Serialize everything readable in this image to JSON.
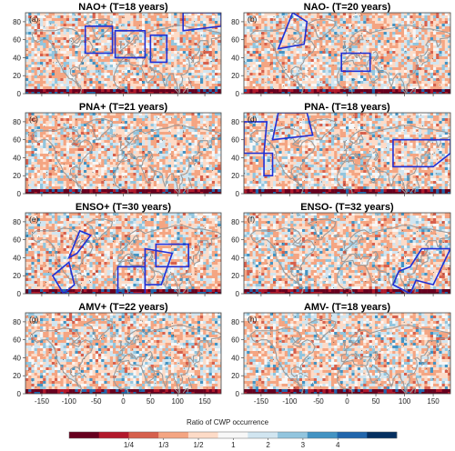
{
  "chart_data": {
    "type": "heatmap",
    "panels": [
      {
        "label": "(a)",
        "title": "NAO+ (T=18 years)"
      },
      {
        "label": "(b)",
        "title": "NAO- (T=20 years)"
      },
      {
        "label": "(c)",
        "title": "PNA+ (T=21 years)"
      },
      {
        "label": "(d)",
        "title": "PNA- (T=18 years)"
      },
      {
        "label": "(e)",
        "title": "ENSO+ (T=30 years)"
      },
      {
        "label": "(f)",
        "title": "ENSO- (T=32 years)"
      },
      {
        "label": "(g)",
        "title": "AMV+ (T=22 years)"
      },
      {
        "label": "(h)",
        "title": "AMV- (T=18 years)"
      }
    ],
    "x_ticks": [
      "-150",
      "-100",
      "-50",
      "0",
      "50",
      "100",
      "150"
    ],
    "x_tick_values": [
      -150,
      -100,
      -50,
      0,
      50,
      100,
      150
    ],
    "y_ticks": [
      "0",
      "20",
      "40",
      "60",
      "80"
    ],
    "y_tick_values": [
      0,
      20,
      40,
      60,
      80
    ],
    "xlim": [
      -180,
      180
    ],
    "ylim": [
      0,
      90
    ],
    "colorbar": {
      "title": "Ratio of CWP occurrence",
      "tick_labels": [
        "1/4",
        "1/3",
        "1/2",
        "1",
        "2",
        "3",
        "4"
      ],
      "colors": [
        "#67001f",
        "#b2182b",
        "#d6604d",
        "#f4a582",
        "#fddbc7",
        "#f7f7f7",
        "#d1e5f0",
        "#92c5de",
        "#4393c3",
        "#2166ac",
        "#053061"
      ]
    },
    "region_boxes": {
      "NAO+": [
        [
          [
            -70,
            45
          ],
          [
            -20,
            45
          ],
          [
            -20,
            75
          ],
          [
            -70,
            75
          ]
        ],
        [
          [
            -15,
            40
          ],
          [
            40,
            40
          ],
          [
            40,
            70
          ],
          [
            -15,
            70
          ]
        ],
        [
          [
            50,
            35
          ],
          [
            80,
            35
          ],
          [
            80,
            65
          ],
          [
            50,
            65
          ]
        ],
        [
          [
            110,
            70
          ],
          [
            180,
            75
          ],
          [
            180,
            90
          ],
          [
            110,
            90
          ]
        ]
      ],
      "NAO-": [
        [
          [
            -120,
            50
          ],
          [
            -95,
            90
          ],
          [
            -70,
            80
          ],
          [
            -75,
            55
          ]
        ],
        [
          [
            -10,
            25
          ],
          [
            40,
            25
          ],
          [
            40,
            45
          ],
          [
            -10,
            45
          ]
        ]
      ],
      "PNA+": [],
      "PNA-": [
        [
          [
            -180,
            45
          ],
          [
            -145,
            45
          ],
          [
            -140,
            80
          ],
          [
            -180,
            80
          ]
        ],
        [
          [
            -130,
            60
          ],
          [
            -60,
            65
          ],
          [
            -70,
            90
          ],
          [
            -120,
            90
          ]
        ],
        [
          [
            -145,
            20
          ],
          [
            -130,
            20
          ],
          [
            -130,
            45
          ],
          [
            -145,
            45
          ]
        ],
        [
          [
            80,
            30
          ],
          [
            150,
            30
          ],
          [
            180,
            45
          ],
          [
            180,
            60
          ],
          [
            80,
            60
          ]
        ]
      ],
      "ENSO+": [
        [
          [
            -130,
            20
          ],
          [
            -110,
            0
          ],
          [
            -90,
            10
          ],
          [
            -100,
            35
          ]
        ],
        [
          [
            -100,
            40
          ],
          [
            -80,
            70
          ],
          [
            -60,
            65
          ],
          [
            -85,
            45
          ]
        ],
        [
          [
            -10,
            0
          ],
          [
            40,
            0
          ],
          [
            40,
            30
          ],
          [
            -10,
            30
          ]
        ],
        [
          [
            40,
            10
          ],
          [
            70,
            10
          ],
          [
            90,
            45
          ],
          [
            40,
            50
          ]
        ],
        [
          [
            60,
            30
          ],
          [
            120,
            30
          ],
          [
            120,
            55
          ],
          [
            60,
            55
          ]
        ]
      ],
      "ENSO-": [
        [
          [
            80,
            10
          ],
          [
            110,
            0
          ],
          [
            120,
            15
          ],
          [
            150,
            10
          ],
          [
            180,
            50
          ],
          [
            130,
            50
          ],
          [
            110,
            30
          ],
          [
            90,
            25
          ]
        ]
      ],
      "AMV+": [],
      "AMV-": []
    }
  }
}
